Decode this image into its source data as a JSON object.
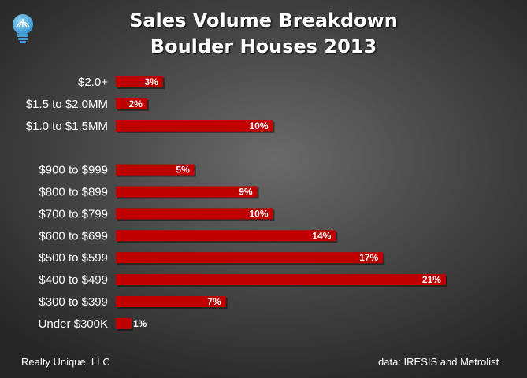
{
  "header": {
    "title_line1": "Sales Volume Breakdown",
    "title_line2": "Boulder Houses 2013"
  },
  "logo": {
    "icon": "lightbulb-icon",
    "color": "#5ab4e6"
  },
  "footer": {
    "left": "Realty Unique, LLC",
    "right": "data: IRESIS and Metrolist"
  },
  "chart_data": {
    "type": "bar",
    "orientation": "horizontal",
    "title": "Sales Volume Breakdown Boulder Houses 2013",
    "xlabel": "",
    "ylabel": "",
    "xlim": [
      0,
      21
    ],
    "grid": false,
    "bar_color": "#c00000",
    "categories": [
      "$2.0+",
      "$1.5 to $2.0MM",
      "$1.0 to $1.5MM",
      "",
      "$900 to $999",
      "$800 to $899",
      "$700 to $799",
      "$600 to $699",
      "$500 to $599",
      "$400 to $499",
      "$300 to $399",
      "Under $300K"
    ],
    "values": [
      3,
      2,
      10,
      null,
      5,
      9,
      10,
      14,
      17,
      21,
      7,
      1
    ],
    "data_labels": [
      "3%",
      "2%",
      "10%",
      "",
      "5%",
      "9%",
      "10%",
      "14%",
      "17%",
      "21%",
      "7%",
      "1%"
    ]
  }
}
